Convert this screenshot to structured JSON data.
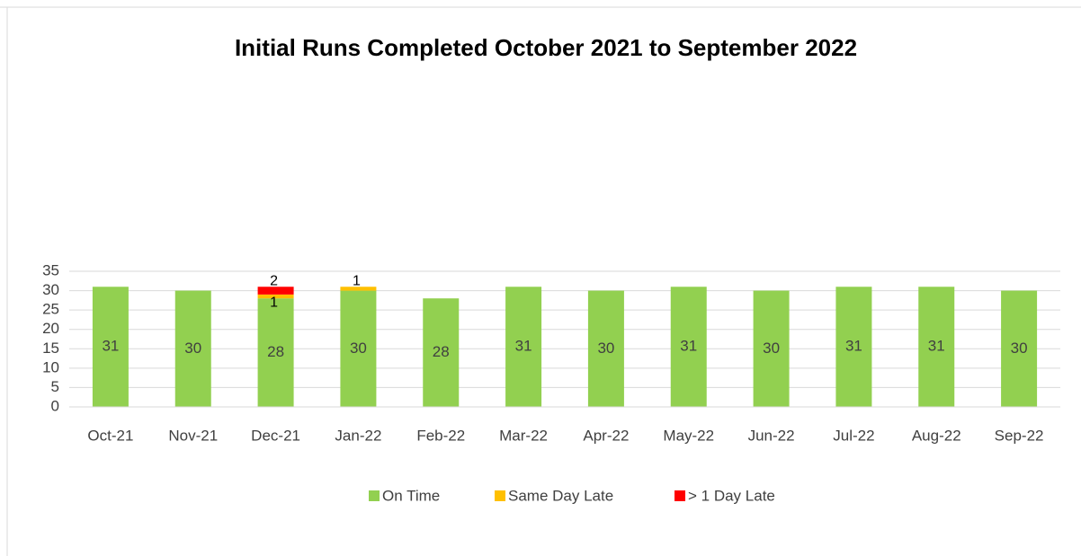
{
  "chart_data": {
    "type": "stacked_bar",
    "title": "Initial Runs Completed October 2021 to September 2022",
    "categories": [
      "Oct-21",
      "Nov-21",
      "Dec-21",
      "Jan-22",
      "Feb-22",
      "Mar-22",
      "Apr-22",
      "May-22",
      "Jun-22",
      "Jul-22",
      "Aug-22",
      "Sep-22"
    ],
    "series": [
      {
        "name": "On Time",
        "color": "#92d050",
        "values": [
          31,
          30,
          28,
          30,
          28,
          31,
          30,
          31,
          30,
          31,
          31,
          30
        ]
      },
      {
        "name": "Same Day Late",
        "color": "#ffc000",
        "values": [
          null,
          null,
          1,
          1,
          null,
          null,
          null,
          null,
          null,
          null,
          null,
          null
        ]
      },
      {
        "name": "> 1 Day Late",
        "color": "#ff0000",
        "values": [
          null,
          null,
          2,
          null,
          null,
          null,
          null,
          null,
          null,
          null,
          null,
          null
        ]
      }
    ],
    "ylim": [
      0,
      35
    ],
    "yticks": [
      0,
      5,
      10,
      15,
      20,
      25,
      30,
      35
    ],
    "grid": true,
    "legend": "bottom"
  }
}
